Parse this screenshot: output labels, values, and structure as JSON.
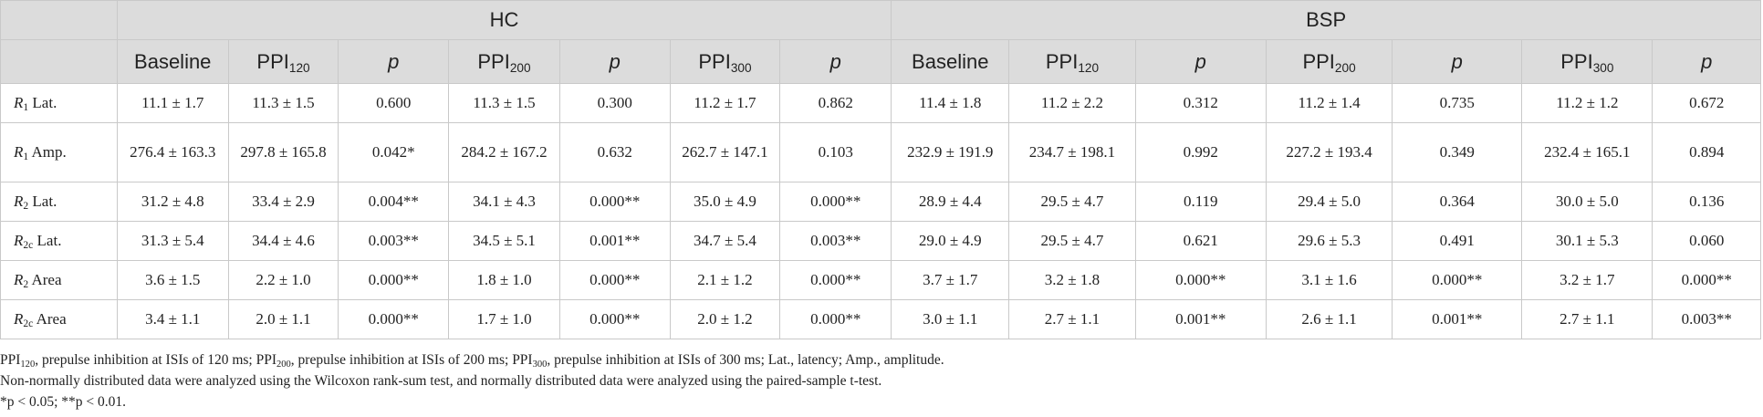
{
  "header": {
    "groups": [
      "HC",
      "BSP"
    ],
    "columns": [
      {
        "main": "Baseline",
        "sub": ""
      },
      {
        "main": "PPI",
        "sub": "120"
      },
      {
        "main": "p",
        "sub": ""
      },
      {
        "main": "PPI",
        "sub": "200"
      },
      {
        "main": "p",
        "sub": ""
      },
      {
        "main": "PPI",
        "sub": "300"
      },
      {
        "main": "p",
        "sub": ""
      }
    ]
  },
  "rows": [
    {
      "label": {
        "sym": "R",
        "sub": "1",
        "rest": " Lat."
      },
      "hc": [
        "11.1 ± 1.7",
        "11.3 ± 1.5",
        "0.600",
        "11.3 ± 1.5",
        "0.300",
        "11.2 ± 1.7",
        "0.862"
      ],
      "bsp": [
        "11.4 ± 1.8",
        "11.2 ± 2.2",
        "0.312",
        "11.2 ± 1.4",
        "0.735",
        "11.2 ± 1.2",
        "0.672"
      ]
    },
    {
      "label": {
        "sym": "R",
        "sub": "1",
        "rest": " Amp."
      },
      "hc": [
        "276.4 ± 163.3",
        "297.8 ± 165.8",
        "0.042*",
        "284.2 ± 167.2",
        "0.632",
        "262.7 ± 147.1",
        "0.103"
      ],
      "bsp": [
        "232.9 ± 191.9",
        "234.7 ± 198.1",
        "0.992",
        "227.2 ± 193.4",
        "0.349",
        "232.4 ± 165.1",
        "0.894"
      ]
    },
    {
      "label": {
        "sym": "R",
        "sub": "2",
        "rest": " Lat."
      },
      "hc": [
        "31.2 ± 4.8",
        "33.4 ± 2.9",
        "0.004**",
        "34.1 ± 4.3",
        "0.000**",
        "35.0 ± 4.9",
        "0.000**"
      ],
      "bsp": [
        "28.9 ± 4.4",
        "29.5 ± 4.7",
        "0.119",
        "29.4 ± 5.0",
        "0.364",
        "30.0 ± 5.0",
        "0.136"
      ]
    },
    {
      "label": {
        "sym": "R",
        "sub": "2c",
        "rest": " Lat."
      },
      "hc": [
        "31.3 ± 5.4",
        "34.4 ± 4.6",
        "0.003**",
        "34.5 ± 5.1",
        "0.001**",
        "34.7 ± 5.4",
        "0.003**"
      ],
      "bsp": [
        "29.0 ± 4.9",
        "29.5 ± 4.7",
        "0.621",
        "29.6 ± 5.3",
        "0.491",
        "30.1 ± 5.3",
        "0.060"
      ]
    },
    {
      "label": {
        "sym": "R",
        "sub": "2",
        "rest": " Area"
      },
      "hc": [
        "3.6 ± 1.5",
        "2.2 ± 1.0",
        "0.000**",
        "1.8 ± 1.0",
        "0.000**",
        "2.1 ± 1.2",
        "0.000**"
      ],
      "bsp": [
        "3.7 ± 1.7",
        "3.2 ± 1.8",
        "0.000**",
        "3.1 ± 1.6",
        "0.000**",
        "3.2 ± 1.7",
        "0.000**"
      ]
    },
    {
      "label": {
        "sym": "R",
        "sub": "2c",
        "rest": " Area"
      },
      "hc": [
        "3.4 ± 1.1",
        "2.0 ± 1.1",
        "0.000**",
        "1.7 ± 1.0",
        "0.000**",
        "2.0 ± 1.2",
        "0.000**"
      ],
      "bsp": [
        "3.0 ± 1.1",
        "2.7 ± 1.1",
        "0.001**",
        "2.6 ± 1.1",
        "0.001**",
        "2.7 ± 1.1",
        "0.003**"
      ]
    }
  ],
  "notes": {
    "line1": [
      {
        "main": "PPI",
        "sub": "120",
        "text": ", prepulse inhibition at ISIs of 120 ms; "
      },
      {
        "main": "PPI",
        "sub": "200",
        "text": ", prepulse inhibition at ISIs of 200 ms; "
      },
      {
        "main": "PPI",
        "sub": "300",
        "text": ", prepulse inhibition at ISIs of 300 ms; Lat., latency; Amp., amplitude."
      }
    ],
    "line2": "Non-normally distributed data were analyzed using the Wilcoxon rank-sum test, and normally distributed data were analyzed using the paired-sample t-test.",
    "line3": "*p < 0.05; **p < 0.01."
  }
}
